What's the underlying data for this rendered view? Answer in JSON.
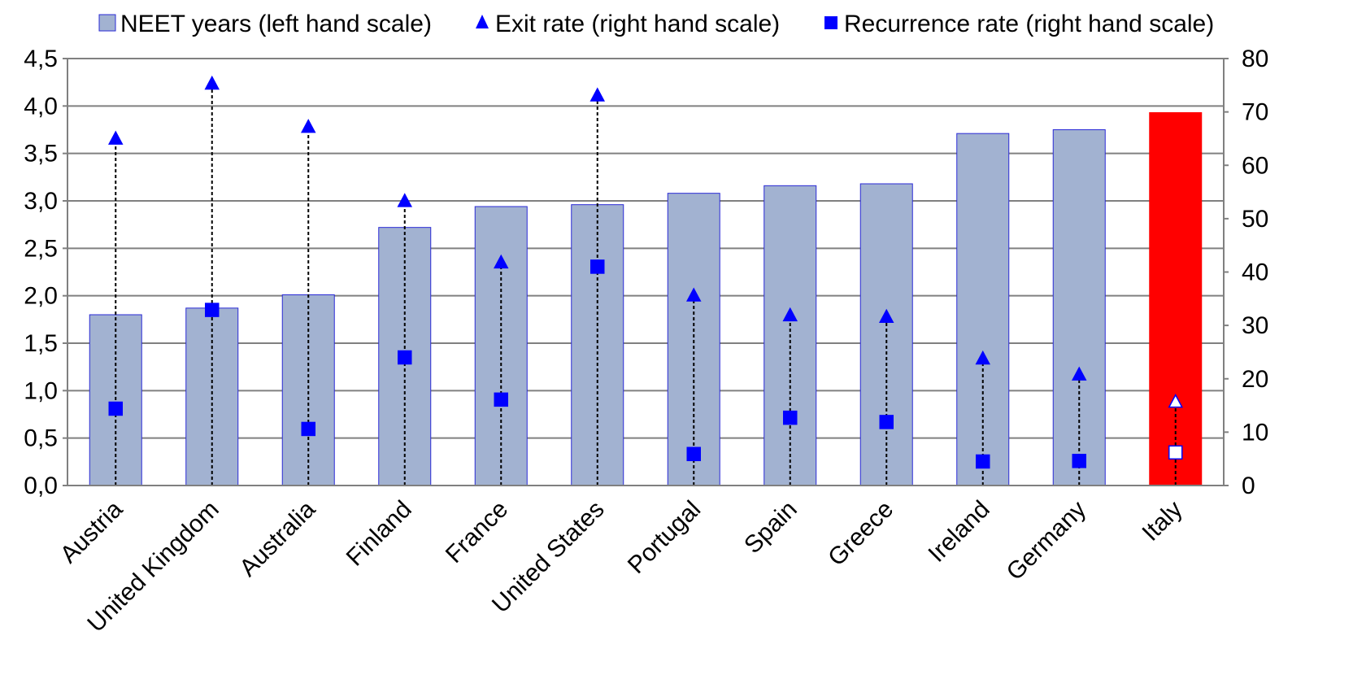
{
  "chart_data": {
    "type": "bar",
    "categories": [
      "Austria",
      "United Kingdom",
      "Australia",
      "Finland",
      "France",
      "United States",
      "Portugal",
      "Spain",
      "Greece",
      "Ireland",
      "Germany",
      "Italy"
    ],
    "series": [
      {
        "name": "NEET years (left hand scale)",
        "type": "bar",
        "axis": "left",
        "values": [
          1.8,
          1.87,
          2.01,
          2.72,
          2.94,
          2.96,
          3.08,
          3.16,
          3.18,
          3.71,
          3.75,
          3.93
        ],
        "color": "#a2b2d1",
        "highlight": {
          "category": "Italy",
          "color": "#ff0000"
        }
      },
      {
        "name": "Exit rate (right hand scale)",
        "type": "marker-triangle",
        "axis": "right",
        "values": [
          64.9,
          75.2,
          67.1,
          53.2,
          41.7,
          73.0,
          35.5,
          31.8,
          31.5,
          23.7,
          20.7,
          15.6
        ],
        "color": "#0000ff"
      },
      {
        "name": "Recurrence rate (right hand scale)",
        "type": "marker-square",
        "axis": "right",
        "values": [
          14.4,
          32.9,
          10.6,
          24.0,
          16.1,
          41.0,
          5.9,
          12.7,
          11.9,
          4.5,
          4.6,
          6.2
        ],
        "color": "#0000ff"
      }
    ],
    "y_left": {
      "lim": [
        0,
        4.5
      ],
      "ticks": [
        "0,0",
        "0,5",
        "1,0",
        "1,5",
        "2,0",
        "2,5",
        "3,0",
        "3,5",
        "4,0",
        "4,5"
      ]
    },
    "y_right": {
      "lim": [
        0,
        80
      ],
      "ticks": [
        "0",
        "10",
        "20",
        "30",
        "40",
        "50",
        "60",
        "70",
        "80"
      ]
    },
    "grid": true,
    "legend_position": "top"
  }
}
